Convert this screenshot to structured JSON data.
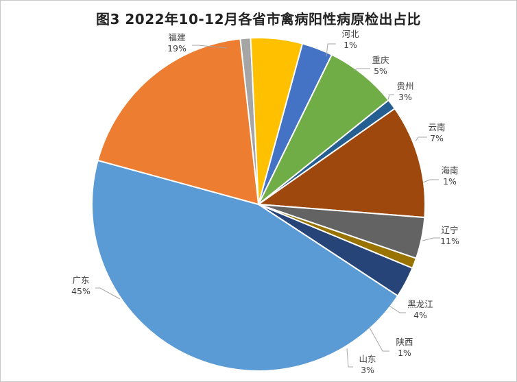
{
  "chart_data": {
    "type": "pie",
    "title": "图3 2022年10-12月各省市禽病阳性病原检出占比",
    "slices": [
      {
        "label": "河北",
        "value": 1,
        "pct": "1%",
        "color": "#a5a5a5"
      },
      {
        "label": "重庆",
        "value": 5,
        "pct": "5%",
        "color": "#ffc000"
      },
      {
        "label": "贵州",
        "value": 3,
        "pct": "3%",
        "color": "#4472c4"
      },
      {
        "label": "云南",
        "value": 7,
        "pct": "7%",
        "color": "#70ad47"
      },
      {
        "label": "海南",
        "value": 1,
        "pct": "1%",
        "color": "#255e91"
      },
      {
        "label": "辽宁",
        "value": 11,
        "pct": "11%",
        "color": "#9e480e"
      },
      {
        "label": "黑龙江",
        "value": 4,
        "pct": "4%",
        "color": "#636363"
      },
      {
        "label": "陕西",
        "value": 1,
        "pct": "1%",
        "color": "#997300"
      },
      {
        "label": "山东",
        "value": 3,
        "pct": "3%",
        "color": "#264478"
      },
      {
        "label": "广东",
        "value": 45,
        "pct": "45%",
        "color": "#5b9bd5"
      },
      {
        "label": "福建",
        "value": 19,
        "pct": "19%",
        "color": "#ed7d31"
      }
    ]
  }
}
